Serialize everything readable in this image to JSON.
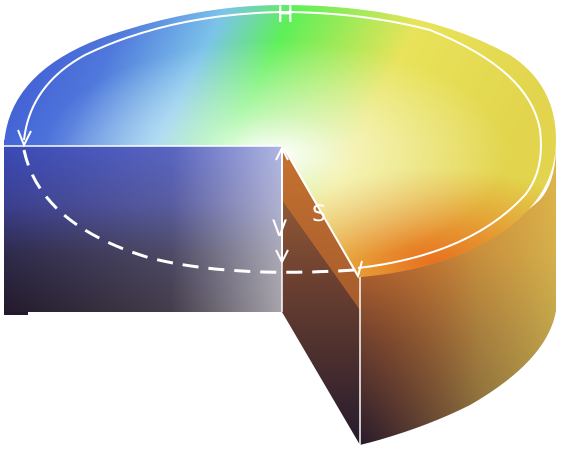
{
  "labels": {
    "hue": "H",
    "saturation": "S",
    "value": "V"
  },
  "colors": {
    "blue": "#3a4fd0",
    "sky": "#7cc3ea",
    "green": "#5ef057",
    "yellow": "#e8e35a",
    "orange": "#e07a2a",
    "dark": "#241b2c",
    "white": "#ffffff"
  }
}
